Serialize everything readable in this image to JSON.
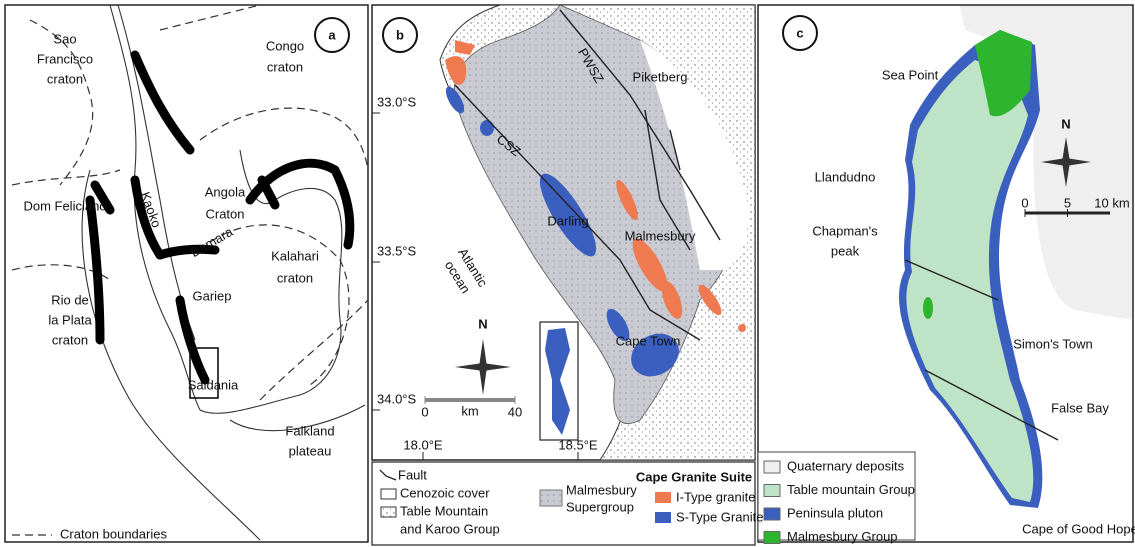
{
  "panel_a": {
    "label": "a",
    "places": [
      [
        "Sao",
        "Francisco",
        "craton"
      ],
      [
        "Congo",
        "craton"
      ],
      [
        "Dom Feliciano"
      ],
      [
        "Kaoko"
      ],
      [
        "Angola",
        "Craton"
      ],
      [
        "Damara"
      ],
      [
        "Kalahari",
        "craton"
      ],
      [
        "Gariep"
      ],
      [
        "Rio de",
        "la Plata",
        "craton"
      ],
      [
        "Saldania"
      ],
      [
        "Falkland",
        "plateau"
      ]
    ],
    "legend": "Craton boundaries"
  },
  "panel_b": {
    "label": "b",
    "places": [
      [
        "PWSZ"
      ],
      [
        "Piketberg"
      ],
      [
        "CSZ"
      ],
      [
        "Darling"
      ],
      [
        "Malmesbury"
      ],
      [
        "Atlantic",
        "ocean"
      ],
      [
        "Cape Town"
      ]
    ],
    "north": "N",
    "scale_unit": "km",
    "scale_ticks": [
      0,
      40
    ],
    "latitudes": [
      "33.0°S",
      "33.5°S",
      "34.0°S"
    ],
    "longitudes": [
      "18.0°E",
      "18.5°E"
    ],
    "legend": {
      "fault": "Fault",
      "cenozoic": "Cenozoic cover",
      "table_mountain": [
        "Table Mountain",
        "and Karoo Group"
      ],
      "malmesbury": [
        "Malmesbury",
        "Supergroup"
      ],
      "suite": "Cape Granite Suite",
      "i_type": "I-Type granite",
      "s_type": "S-Type Granite"
    }
  },
  "panel_c": {
    "label": "c",
    "places": [
      [
        "Sea Point"
      ],
      [
        "Llandudno"
      ],
      [
        "Chapman's",
        "peak"
      ],
      [
        "Simon's Town"
      ],
      [
        "False Bay"
      ],
      [
        "Cape of Good Hope"
      ]
    ],
    "north": "N",
    "scale_ticks": [
      0,
      5
    ],
    "scale_end": "10 km",
    "legend": [
      "Quaternary deposits",
      "Table mountain Group",
      "Peninsula pluton",
      "Malmesbury Group"
    ]
  }
}
